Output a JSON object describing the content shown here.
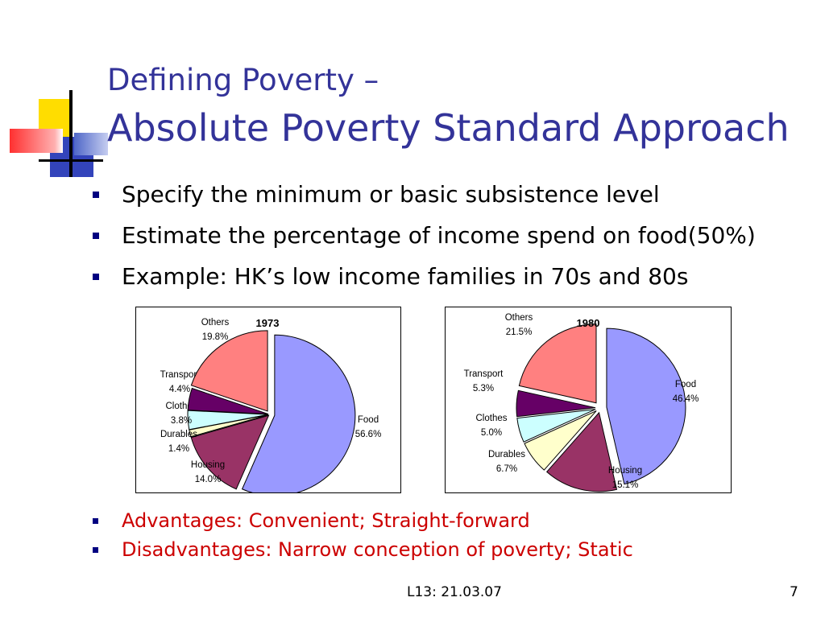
{
  "slide": {
    "title_line1": "Defining Poverty –",
    "title_line2": "Absolute Poverty Standard Approach",
    "bullets": [
      "Specify the minimum or basic subsistence level",
      "Estimate the percentage of income spend on food(50%)",
      "Example: HK’s low income families in 70s and 80s"
    ],
    "bullets_red": [
      "Advantages: Convenient; Straight-forward",
      "Disadvantages: Narrow conception of poverty; Static"
    ],
    "footer": "L13: 21.03.07",
    "page_number": "7"
  },
  "chart_data": [
    {
      "type": "pie",
      "title": "1973",
      "slices": [
        {
          "label": "Food",
          "value": 56.6,
          "display": "56.6%",
          "color": "#9999ff"
        },
        {
          "label": "Housing",
          "value": 14.0,
          "display": "14.0%",
          "color": "#993366"
        },
        {
          "label": "Durables",
          "value": 1.4,
          "display": "1.4%",
          "color": "#ffffcc"
        },
        {
          "label": "Clothes",
          "value": 3.8,
          "display": "3.8%",
          "color": "#ccffff"
        },
        {
          "label": "Transport",
          "value": 4.4,
          "display": "4.4%",
          "color": "#660066"
        },
        {
          "label": "Others",
          "value": 19.8,
          "display": "19.8%",
          "color": "#ff8080"
        }
      ]
    },
    {
      "type": "pie",
      "title": "1980",
      "slices": [
        {
          "label": "Food",
          "value": 46.4,
          "display": "46.4%",
          "color": "#9999ff"
        },
        {
          "label": "Housing",
          "value": 15.1,
          "display": "15.1%",
          "color": "#993366"
        },
        {
          "label": "Durables",
          "value": 6.7,
          "display": "6.7%",
          "color": "#ffffcc"
        },
        {
          "label": "Clothes",
          "value": 5.0,
          "display": "5.0%",
          "color": "#ccffff"
        },
        {
          "label": "Transport",
          "value": 5.3,
          "display": "5.3%",
          "color": "#660066"
        },
        {
          "label": "Others",
          "value": 21.5,
          "display": "21.5%",
          "color": "#ff8080"
        }
      ]
    }
  ]
}
